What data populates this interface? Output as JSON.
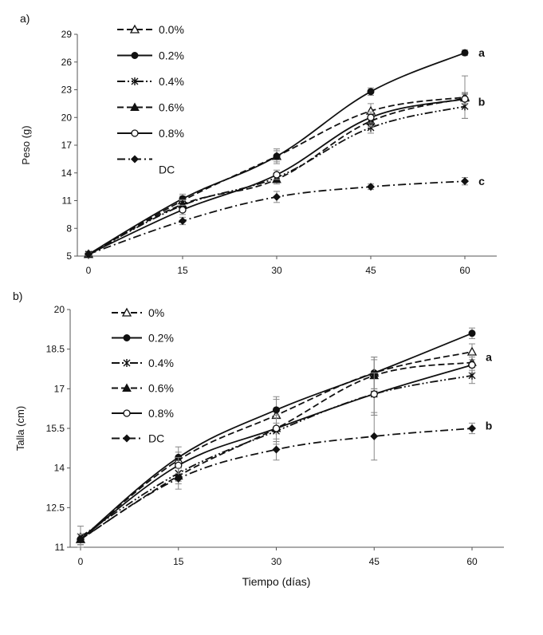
{
  "chart_data": [
    {
      "panel_label": "a)",
      "type": "line",
      "ylabel": "Peso (g)",
      "xlabel": "",
      "x": [
        0,
        15,
        30,
        45,
        60
      ],
      "x_ticks": [
        "0",
        "15",
        "30",
        "45",
        "60"
      ],
      "ylim": [
        5,
        29
      ],
      "y_ticks": [
        "5",
        "8",
        "11",
        "14",
        "17",
        "20",
        "23",
        "26",
        "29"
      ],
      "legend_position": "top-left",
      "series": [
        {
          "name": "0.0%",
          "marker": "triangle-open",
          "dash": "dashed",
          "values": [
            5.2,
            11.0,
            15.8,
            20.7,
            22.2
          ],
          "errors": [
            0.2,
            0.5,
            0.8,
            0.8,
            2.3
          ]
        },
        {
          "name": "0.2%",
          "marker": "circle-filled",
          "dash": "solid",
          "values": [
            5.2,
            11.2,
            15.8,
            22.8,
            27.0
          ],
          "errors": [
            0.2,
            0.5,
            0.6,
            0.4,
            0.3
          ]
        },
        {
          "name": "0.4%",
          "marker": "star",
          "dash": "dash-dot-dot",
          "values": [
            5.2,
            10.5,
            13.5,
            18.9,
            21.2
          ],
          "errors": [
            0.2,
            0.5,
            0.5,
            0.6,
            1.3
          ]
        },
        {
          "name": "0.6%",
          "marker": "triangle-filled",
          "dash": "dashed",
          "values": [
            5.2,
            10.6,
            13.3,
            19.6,
            22.1
          ],
          "errors": [
            0.2,
            0.5,
            0.5,
            0.6,
            0.6
          ]
        },
        {
          "name": "0.8%",
          "marker": "circle-open",
          "dash": "solid",
          "values": [
            5.2,
            10.0,
            13.8,
            20.0,
            22.0
          ],
          "errors": [
            0.2,
            0.5,
            0.5,
            0.6,
            0.6
          ]
        },
        {
          "name": "DC",
          "marker": "diamond-filled",
          "dash": "dash-dot",
          "values": [
            5.2,
            8.8,
            11.4,
            12.5,
            13.1
          ],
          "errors": [
            0.2,
            0.4,
            0.6,
            0.3,
            0.4
          ]
        }
      ],
      "annotations": [
        {
          "text": "a",
          "x": 60,
          "y": 27.0
        },
        {
          "text": "b",
          "x": 60,
          "y": 21.7
        },
        {
          "text": "c",
          "x": 60,
          "y": 13.1
        }
      ]
    },
    {
      "panel_label": "b)",
      "type": "line",
      "ylabel": "Talla (cm)",
      "xlabel": "Tiempo (días)",
      "x": [
        0,
        15,
        30,
        45,
        60
      ],
      "x_ticks": [
        "0",
        "15",
        "30",
        "45",
        "60"
      ],
      "ylim": [
        11,
        20
      ],
      "y_ticks": [
        "11",
        "12.5",
        "14",
        "15.5",
        "17",
        "18.5",
        "20"
      ],
      "legend_position": "top-left",
      "series": [
        {
          "name": "0%",
          "marker": "triangle-open",
          "dash": "dashed",
          "values": [
            11.3,
            14.3,
            16.0,
            17.6,
            18.4
          ],
          "errors": [
            0.2,
            0.3,
            0.6,
            0.6,
            0.3
          ]
        },
        {
          "name": "0.2%",
          "marker": "circle-filled",
          "dash": "solid",
          "values": [
            11.3,
            14.4,
            16.2,
            17.6,
            19.1
          ],
          "errors": [
            0.2,
            0.4,
            0.5,
            0.6,
            0.2
          ]
        },
        {
          "name": "0.4%",
          "marker": "star",
          "dash": "dash-dot-dot",
          "values": [
            11.4,
            13.8,
            15.4,
            16.8,
            17.5
          ],
          "errors": [
            0.4,
            0.3,
            0.5,
            0.8,
            0.3
          ]
        },
        {
          "name": "0.6%",
          "marker": "triangle-filled",
          "dash": "dashed",
          "values": [
            11.3,
            13.7,
            15.5,
            17.5,
            18.0
          ],
          "errors": [
            0.2,
            0.3,
            0.5,
            0.6,
            0.3
          ]
        },
        {
          "name": "0.8%",
          "marker": "circle-open",
          "dash": "solid",
          "values": [
            11.3,
            14.1,
            15.5,
            16.8,
            17.9
          ],
          "errors": [
            0.2,
            0.3,
            0.5,
            0.8,
            0.3
          ]
        },
        {
          "name": "DC",
          "marker": "diamond-filled",
          "dash": "dash-dot",
          "values": [
            11.3,
            13.6,
            14.7,
            15.2,
            15.5
          ],
          "errors": [
            0.2,
            0.4,
            0.4,
            0.9,
            0.2
          ]
        }
      ],
      "annotations": [
        {
          "text": "a",
          "x": 60,
          "y": 18.2
        },
        {
          "text": "b",
          "x": 60,
          "y": 15.6
        }
      ]
    }
  ]
}
